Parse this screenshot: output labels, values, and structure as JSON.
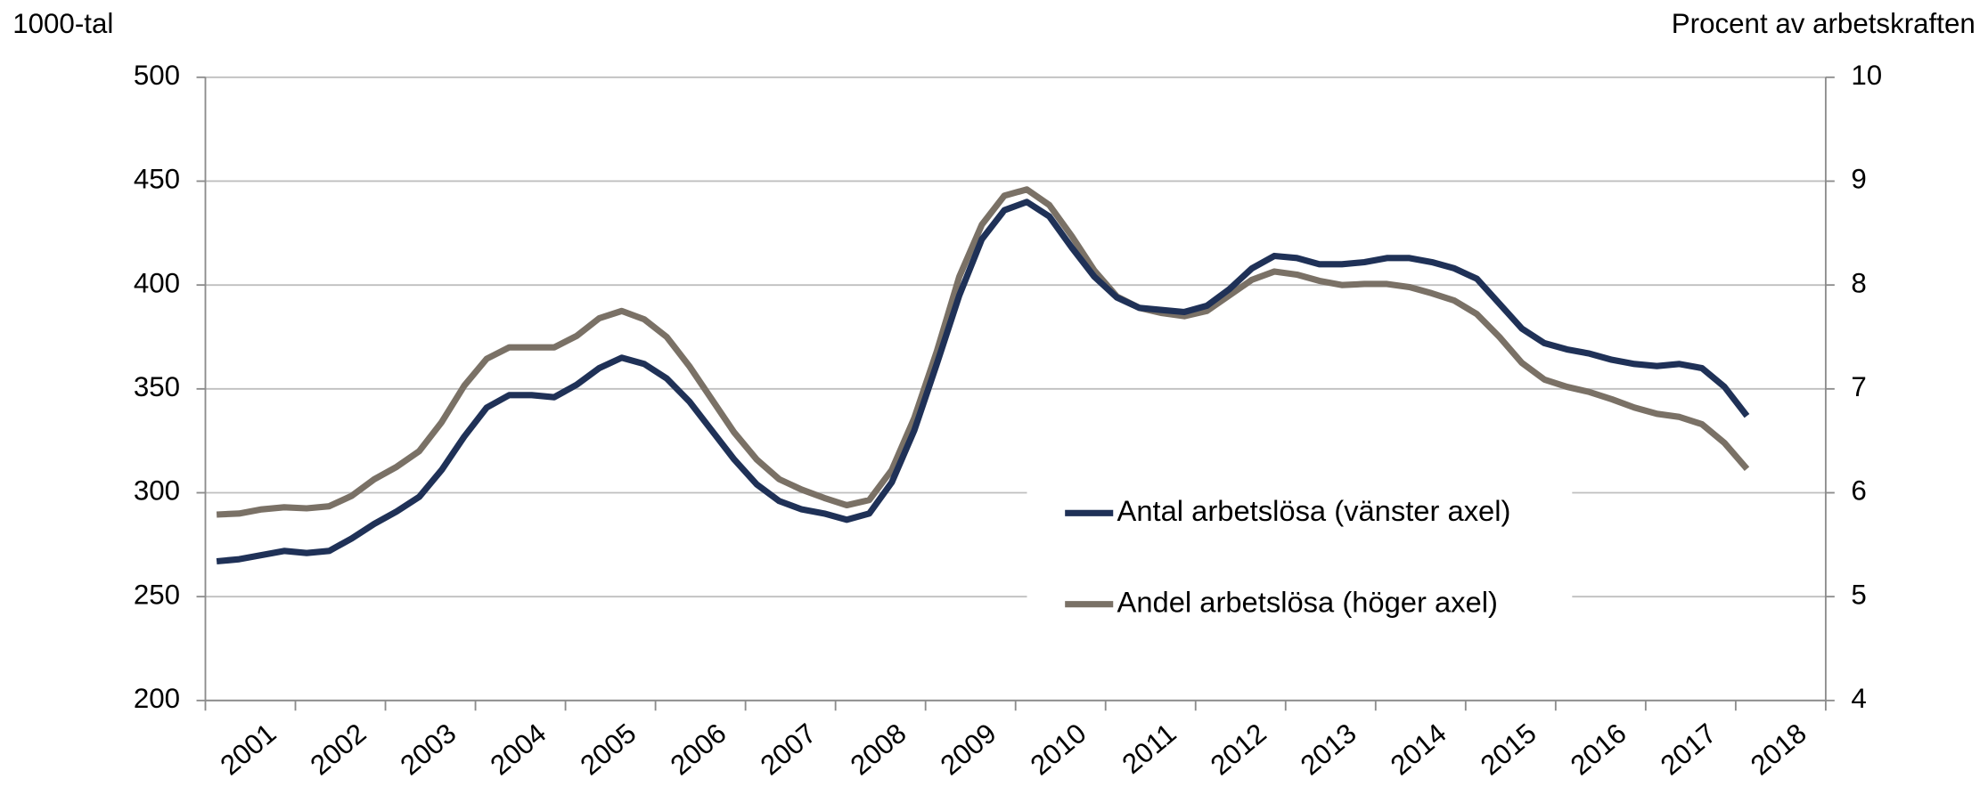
{
  "chart_data": {
    "type": "line",
    "y_label": "1000-tal",
    "y2_label": "Procent av arbetskraften",
    "categories": [
      "2001",
      null,
      null,
      null,
      "2002",
      null,
      null,
      null,
      "2003",
      null,
      null,
      null,
      "2004",
      null,
      null,
      null,
      "2005",
      null,
      null,
      null,
      "2006",
      null,
      null,
      null,
      "2007",
      null,
      null,
      null,
      "2008",
      null,
      null,
      null,
      "2009",
      null,
      null,
      null,
      "2010",
      null,
      null,
      null,
      "2011",
      null,
      null,
      null,
      "2012",
      null,
      null,
      null,
      "2013",
      null,
      null,
      null,
      "2014",
      null,
      null,
      null,
      "2015",
      null,
      null,
      null,
      "2016",
      null,
      null,
      null,
      "2017",
      null,
      null,
      null,
      "2018"
    ],
    "series": [
      {
        "name": "Antal arbetslösa (vänster axel)",
        "color": "#1f3157",
        "axis": "y",
        "values": [
          267,
          268,
          270,
          272,
          271,
          272,
          278,
          285,
          291,
          298,
          311,
          327,
          341,
          347,
          347,
          346,
          352,
          360,
          365,
          362,
          355,
          344,
          330,
          316,
          304,
          296,
          292,
          290,
          287,
          290,
          305,
          330,
          362,
          395,
          422,
          436,
          440,
          433,
          418,
          404,
          394,
          389,
          388,
          387,
          390,
          398,
          408,
          414,
          413,
          410,
          410,
          411,
          413,
          413,
          411,
          408,
          403,
          391,
          379,
          372,
          369,
          367,
          364,
          362,
          361,
          362,
          360,
          351,
          337
        ]
      },
      {
        "name": "Andel arbetslösa (höger axel)",
        "color": "#7a7166",
        "axis": "y2",
        "values": [
          5.79,
          5.8,
          5.84,
          5.86,
          5.85,
          5.87,
          5.97,
          6.13,
          6.25,
          6.4,
          6.68,
          7.03,
          7.29,
          7.4,
          7.4,
          7.4,
          7.51,
          7.68,
          7.75,
          7.67,
          7.5,
          7.22,
          6.9,
          6.58,
          6.32,
          6.13,
          6.03,
          5.95,
          5.88,
          5.93,
          6.22,
          6.72,
          7.36,
          8.08,
          8.58,
          8.86,
          8.92,
          8.77,
          8.47,
          8.14,
          7.89,
          7.78,
          7.73,
          7.7,
          7.75,
          7.9,
          8.05,
          8.13,
          8.1,
          8.04,
          8.0,
          8.01,
          8.01,
          7.98,
          7.92,
          7.85,
          7.72,
          7.5,
          7.25,
          7.09,
          7.02,
          6.97,
          6.9,
          6.82,
          6.76,
          6.73,
          6.66,
          6.48,
          6.23
        ]
      }
    ],
    "ylim": [
      200,
      500
    ],
    "yticks": [
      200,
      250,
      300,
      350,
      400,
      450,
      500
    ],
    "y2lim": [
      4,
      10
    ],
    "y2ticks": [
      4,
      5,
      6,
      7,
      8,
      9,
      10
    ],
    "grid": true,
    "legend": "center"
  }
}
